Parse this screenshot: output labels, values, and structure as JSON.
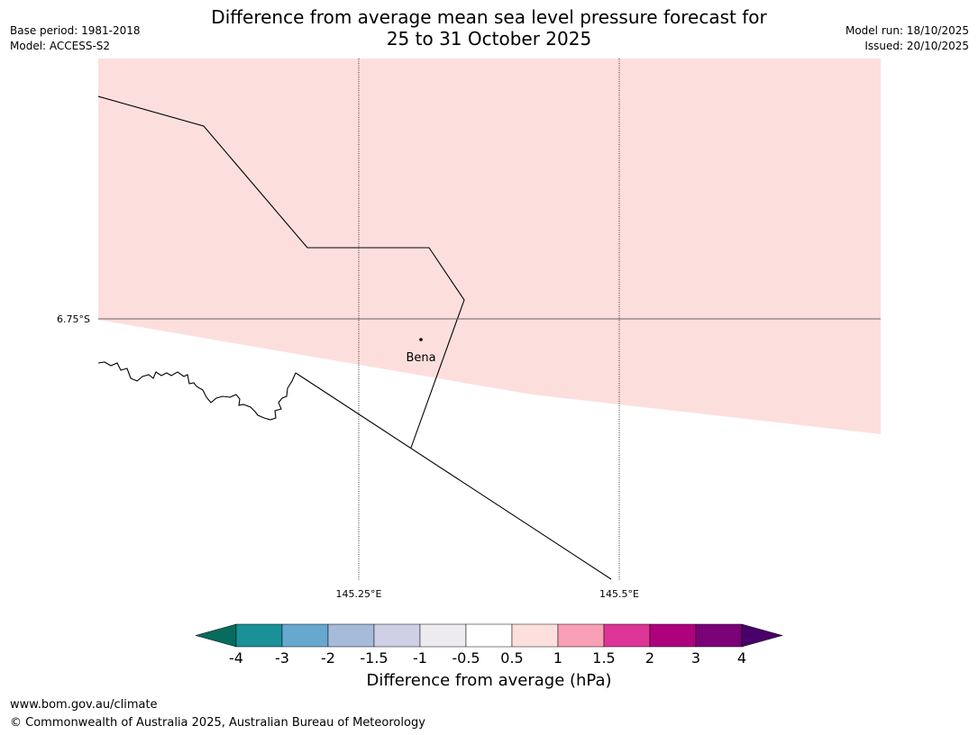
{
  "title": {
    "line1": "Difference from average mean sea level pressure forecast for",
    "line2": "25 to 31 October 2025"
  },
  "meta_left": {
    "base_period": "Base period: 1981-2018",
    "model": "Model: ACCESS-S2"
  },
  "meta_right": {
    "model_run": "Model run: 18/10/2025",
    "issued": "Issued: 20/10/2025"
  },
  "map": {
    "place_label": "Bena",
    "lat_label": "6.75°S",
    "lon_labels": [
      "145.25°E",
      "145.5°E"
    ],
    "shading_category": "0.5 to 1",
    "shading_color": "#fcdfdd"
  },
  "colorbar": {
    "title": "Difference from average (hPa)",
    "tick_labels": [
      "-4",
      "-3",
      "-2",
      "-1.5",
      "-1",
      "-0.5",
      "0.5",
      "1",
      "1.5",
      "2",
      "3",
      "4"
    ],
    "colors": [
      "#076b5e",
      "#1a9196",
      "#67a8cf",
      "#a6bad9",
      "#cfcfe5",
      "#edeaf0",
      "#ffffff",
      "#fde0dd",
      "#f99fb6",
      "#dd3497",
      "#ae017e",
      "#7a0177",
      "#49006a"
    ]
  },
  "footer": {
    "url": "www.bom.gov.au/climate",
    "copyright": "© Commonwealth of Australia 2025, Australian Bureau of Meteorology"
  }
}
